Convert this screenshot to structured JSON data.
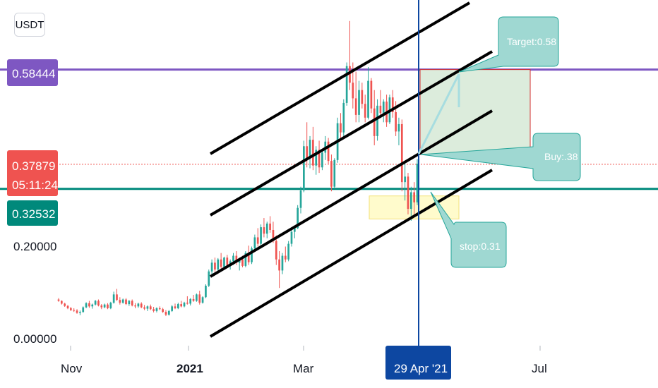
{
  "currency_button": "USDT",
  "colors": {
    "bull": "#26a69a",
    "bear": "#ef5350",
    "target_line": "#7e57c2",
    "support_line": "#00897b",
    "cursor_line": "#0d47a1",
    "callout_fill": "#9fd8d2",
    "callout_stroke": "#26a69a",
    "target_box_fill": "#dcecdc",
    "target_box_stroke": "#d32f2f",
    "stop_box_fill": "#fffbcc",
    "stop_box_stroke": "#f3e27a",
    "price_dotted": "#ef5350"
  },
  "chart_data": {
    "type": "candlestick",
    "symbol_quote": "USDT",
    "y_axis_ticks": [
      "0.00000",
      "0.20000"
    ],
    "x_axis_ticks": [
      "Nov",
      "2021",
      "Mar",
      "Jul"
    ],
    "ylim": [
      0,
      0.75
    ],
    "price_tags": {
      "target_level": "0.58444",
      "last_price": "0.37879",
      "countdown": "05:11:24",
      "support_level": "0.32532"
    },
    "crosshair_date_label": "29 Apr '21",
    "horizontal_levels": [
      {
        "value": 0.58444,
        "role": "target"
      },
      {
        "value": 0.32532,
        "role": "support"
      },
      {
        "value": 0.37879,
        "role": "last-price",
        "style": "dotted"
      }
    ],
    "callouts": [
      "Target:0.58",
      "Buy:.38",
      "stop:0.31"
    ],
    "zones": [
      {
        "role": "target",
        "y_from": 0.4,
        "y_to": 0.58444
      },
      {
        "role": "stop",
        "y_from": 0.26,
        "y_to": 0.31
      }
    ],
    "channel_lines": 4,
    "candles_ohlc": [
      [
        0.085,
        0.088,
        0.08,
        0.082
      ],
      [
        0.082,
        0.083,
        0.074,
        0.076
      ],
      [
        0.076,
        0.078,
        0.069,
        0.071
      ],
      [
        0.071,
        0.073,
        0.064,
        0.066
      ],
      [
        0.066,
        0.069,
        0.06,
        0.062
      ],
      [
        0.062,
        0.066,
        0.058,
        0.061
      ],
      [
        0.061,
        0.064,
        0.054,
        0.056
      ],
      [
        0.056,
        0.061,
        0.051,
        0.058
      ],
      [
        0.058,
        0.07,
        0.056,
        0.068
      ],
      [
        0.068,
        0.079,
        0.066,
        0.077
      ],
      [
        0.077,
        0.082,
        0.067,
        0.07
      ],
      [
        0.07,
        0.076,
        0.065,
        0.074
      ],
      [
        0.074,
        0.084,
        0.072,
        0.082
      ],
      [
        0.082,
        0.085,
        0.07,
        0.072
      ],
      [
        0.072,
        0.075,
        0.064,
        0.068
      ],
      [
        0.068,
        0.076,
        0.066,
        0.074
      ],
      [
        0.074,
        0.077,
        0.064,
        0.066
      ],
      [
        0.066,
        0.08,
        0.064,
        0.078
      ],
      [
        0.078,
        0.102,
        0.076,
        0.096
      ],
      [
        0.096,
        0.108,
        0.082,
        0.084
      ],
      [
        0.084,
        0.09,
        0.074,
        0.078
      ],
      [
        0.078,
        0.087,
        0.076,
        0.085
      ],
      [
        0.085,
        0.088,
        0.073,
        0.075
      ],
      [
        0.075,
        0.084,
        0.071,
        0.082
      ],
      [
        0.082,
        0.085,
        0.07,
        0.072
      ],
      [
        0.072,
        0.077,
        0.066,
        0.07
      ],
      [
        0.07,
        0.078,
        0.067,
        0.076
      ],
      [
        0.076,
        0.079,
        0.066,
        0.068
      ],
      [
        0.068,
        0.073,
        0.062,
        0.065
      ],
      [
        0.065,
        0.072,
        0.06,
        0.07
      ],
      [
        0.07,
        0.074,
        0.062,
        0.064
      ],
      [
        0.064,
        0.069,
        0.057,
        0.06
      ],
      [
        0.06,
        0.068,
        0.057,
        0.066
      ],
      [
        0.066,
        0.07,
        0.062,
        0.064
      ],
      [
        0.064,
        0.067,
        0.056,
        0.058
      ],
      [
        0.058,
        0.062,
        0.049,
        0.052
      ],
      [
        0.052,
        0.062,
        0.05,
        0.06
      ],
      [
        0.06,
        0.073,
        0.058,
        0.07
      ],
      [
        0.07,
        0.076,
        0.064,
        0.066
      ],
      [
        0.066,
        0.078,
        0.064,
        0.075
      ],
      [
        0.075,
        0.082,
        0.068,
        0.07
      ],
      [
        0.07,
        0.08,
        0.068,
        0.078
      ],
      [
        0.078,
        0.092,
        0.074,
        0.076
      ],
      [
        0.076,
        0.088,
        0.072,
        0.086
      ],
      [
        0.086,
        0.095,
        0.08,
        0.082
      ],
      [
        0.082,
        0.098,
        0.08,
        0.096
      ],
      [
        0.096,
        0.104,
        0.074,
        0.078
      ],
      [
        0.078,
        0.092,
        0.076,
        0.09
      ],
      [
        0.09,
        0.118,
        0.088,
        0.115
      ],
      [
        0.115,
        0.15,
        0.112,
        0.146
      ],
      [
        0.146,
        0.172,
        0.138,
        0.165
      ],
      [
        0.165,
        0.176,
        0.145,
        0.15
      ],
      [
        0.15,
        0.175,
        0.146,
        0.172
      ],
      [
        0.172,
        0.186,
        0.152,
        0.156
      ],
      [
        0.156,
        0.178,
        0.15,
        0.176
      ],
      [
        0.176,
        0.182,
        0.155,
        0.16
      ],
      [
        0.16,
        0.172,
        0.15,
        0.168
      ],
      [
        0.168,
        0.186,
        0.16,
        0.18
      ],
      [
        0.18,
        0.19,
        0.16,
        0.165
      ],
      [
        0.165,
        0.176,
        0.148,
        0.172
      ],
      [
        0.172,
        0.18,
        0.155,
        0.158
      ],
      [
        0.158,
        0.19,
        0.155,
        0.186
      ],
      [
        0.186,
        0.202,
        0.16,
        0.166
      ],
      [
        0.166,
        0.2,
        0.162,
        0.196
      ],
      [
        0.196,
        0.226,
        0.19,
        0.22
      ],
      [
        0.22,
        0.24,
        0.2,
        0.206
      ],
      [
        0.206,
        0.248,
        0.202,
        0.242
      ],
      [
        0.242,
        0.262,
        0.22,
        0.228
      ],
      [
        0.228,
        0.254,
        0.218,
        0.25
      ],
      [
        0.25,
        0.266,
        0.23,
        0.236
      ],
      [
        0.236,
        0.254,
        0.208,
        0.212
      ],
      [
        0.212,
        0.224,
        0.16,
        0.172
      ],
      [
        0.172,
        0.19,
        0.11,
        0.148
      ],
      [
        0.148,
        0.186,
        0.14,
        0.18
      ],
      [
        0.18,
        0.2,
        0.166,
        0.172
      ],
      [
        0.172,
        0.212,
        0.168,
        0.206
      ],
      [
        0.206,
        0.238,
        0.2,
        0.232
      ],
      [
        0.232,
        0.246,
        0.218,
        0.24
      ],
      [
        0.24,
        0.29,
        0.238,
        0.284
      ],
      [
        0.284,
        0.33,
        0.272,
        0.322
      ],
      [
        0.322,
        0.43,
        0.318,
        0.418
      ],
      [
        0.418,
        0.47,
        0.372,
        0.392
      ],
      [
        0.392,
        0.44,
        0.37,
        0.432
      ],
      [
        0.432,
        0.46,
        0.366,
        0.376
      ],
      [
        0.376,
        0.418,
        0.356,
        0.41
      ],
      [
        0.41,
        0.43,
        0.36,
        0.372
      ],
      [
        0.372,
        0.412,
        0.366,
        0.404
      ],
      [
        0.404,
        0.44,
        0.388,
        0.428
      ],
      [
        0.428,
        0.436,
        0.38,
        0.386
      ],
      [
        0.386,
        0.4,
        0.32,
        0.33
      ],
      [
        0.33,
        0.392,
        0.326,
        0.388
      ],
      [
        0.388,
        0.48,
        0.382,
        0.468
      ],
      [
        0.468,
        0.49,
        0.43,
        0.448
      ],
      [
        0.448,
        0.52,
        0.44,
        0.512
      ],
      [
        0.512,
        0.6,
        0.506,
        0.592
      ],
      [
        0.592,
        0.69,
        0.54,
        0.556
      ],
      [
        0.556,
        0.6,
        0.5,
        0.522
      ],
      [
        0.522,
        0.58,
        0.47,
        0.486
      ],
      [
        0.486,
        0.56,
        0.47,
        0.54
      ],
      [
        0.54,
        0.556,
        0.5,
        0.51
      ],
      [
        0.51,
        0.53,
        0.47,
        0.48
      ],
      [
        0.48,
        0.59,
        0.476,
        0.56
      ],
      [
        0.56,
        0.566,
        0.49,
        0.5
      ],
      [
        0.5,
        0.54,
        0.42,
        0.44
      ],
      [
        0.44,
        0.52,
        0.43,
        0.506
      ],
      [
        0.506,
        0.54,
        0.48,
        0.49
      ],
      [
        0.49,
        0.52,
        0.47,
        0.515
      ],
      [
        0.515,
        0.53,
        0.46,
        0.47
      ],
      [
        0.47,
        0.53,
        0.466,
        0.524
      ],
      [
        0.524,
        0.54,
        0.48,
        0.492
      ],
      [
        0.492,
        0.516,
        0.44,
        0.45
      ],
      [
        0.45,
        0.48,
        0.42,
        0.466
      ],
      [
        0.466,
        0.476,
        0.32,
        0.34
      ],
      [
        0.34,
        0.38,
        0.3,
        0.352
      ],
      [
        0.352,
        0.36,
        0.27,
        0.282
      ],
      [
        0.282,
        0.33,
        0.256,
        0.318
      ],
      [
        0.318,
        0.34,
        0.27,
        0.296
      ],
      [
        0.296,
        0.39,
        0.29,
        0.38
      ]
    ]
  }
}
